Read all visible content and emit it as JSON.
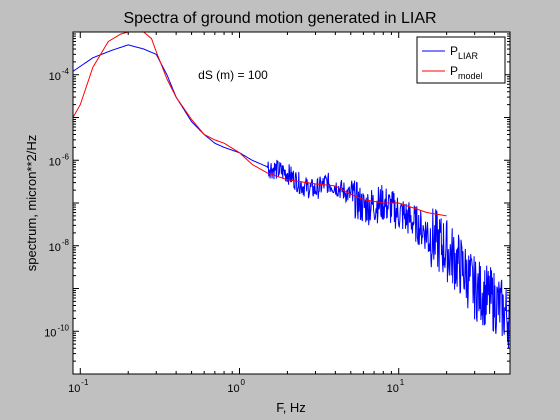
{
  "chart_data": {
    "type": "line",
    "title": "Spectra of ground motion generated in LIAR",
    "xlabel": "F, Hz",
    "ylabel": "spectrum, micron**2/Hz",
    "x_scale": "log",
    "y_scale": "log",
    "xlim": [
      0.09,
      50
    ],
    "ylim": [
      1e-11,
      0.001
    ],
    "grid": false,
    "legend_position": "top-right",
    "x_ticks": [
      {
        "value": 0.1,
        "base": "10",
        "exp": "-1"
      },
      {
        "value": 1,
        "base": "10",
        "exp": "0"
      },
      {
        "value": 10,
        "base": "10",
        "exp": "1"
      }
    ],
    "y_ticks": [
      {
        "value": 1e-10,
        "base": "10",
        "exp": "-10"
      },
      {
        "value": 1e-08,
        "base": "10",
        "exp": "-8"
      },
      {
        "value": 1e-06,
        "base": "10",
        "exp": "-6"
      },
      {
        "value": 0.0001,
        "base": "10",
        "exp": "-4"
      }
    ],
    "annotations": [
      {
        "text": "dS (m) = 100",
        "x": 0.55,
        "y": 0.0001
      }
    ],
    "series": [
      {
        "name_main": "P",
        "name_sub": "LIAR",
        "color": "#0000ff",
        "noisy": true,
        "x": [
          0.09,
          0.12,
          0.16,
          0.2,
          0.25,
          0.3,
          0.35,
          0.4,
          0.5,
          0.6,
          0.7,
          0.8,
          1.0,
          1.2,
          1.5,
          2.0,
          2.5,
          3.0,
          3.5,
          4.0,
          5.0,
          6.0,
          8.0,
          10,
          12,
          15,
          20,
          25,
          30,
          40,
          50
        ],
        "y": [
          0.00012,
          0.00025,
          0.00038,
          0.0005,
          0.0004,
          0.0003,
          0.0001,
          3e-05,
          8e-06,
          4e-06,
          2.5e-06,
          2e-06,
          1.5e-06,
          1e-06,
          7e-07,
          5e-07,
          2.5e-07,
          2e-07,
          3e-07,
          2.5e-07,
          1.5e-07,
          8e-08,
          1e-07,
          6e-08,
          4e-08,
          2e-08,
          8e-09,
          3e-09,
          1e-09,
          5e-10,
          2e-10
        ]
      },
      {
        "name_main": "P",
        "name_sub": "model",
        "color": "#ff0000",
        "noisy": false,
        "x": [
          0.09,
          0.1,
          0.12,
          0.15,
          0.18,
          0.2,
          0.22,
          0.25,
          0.28,
          0.3,
          0.35,
          0.4,
          0.5,
          0.6,
          0.7,
          0.8,
          1.0,
          1.2,
          1.5,
          2.0,
          3.0,
          4.0,
          5.0,
          6.0,
          8.0,
          10,
          15,
          20
        ],
        "y": [
          1e-05,
          2e-05,
          0.00015,
          0.0006,
          0.0009,
          0.0011,
          0.0013,
          0.0013,
          0.0007,
          0.00035,
          8e-05,
          3e-05,
          9e-06,
          4e-06,
          3e-06,
          2.5e-06,
          1.5e-06,
          8e-07,
          5e-07,
          3.5e-07,
          2.8e-07,
          2.5e-07,
          1.6e-07,
          1.2e-07,
          1e-07,
          1e-07,
          6e-08,
          5e-08
        ]
      }
    ]
  }
}
